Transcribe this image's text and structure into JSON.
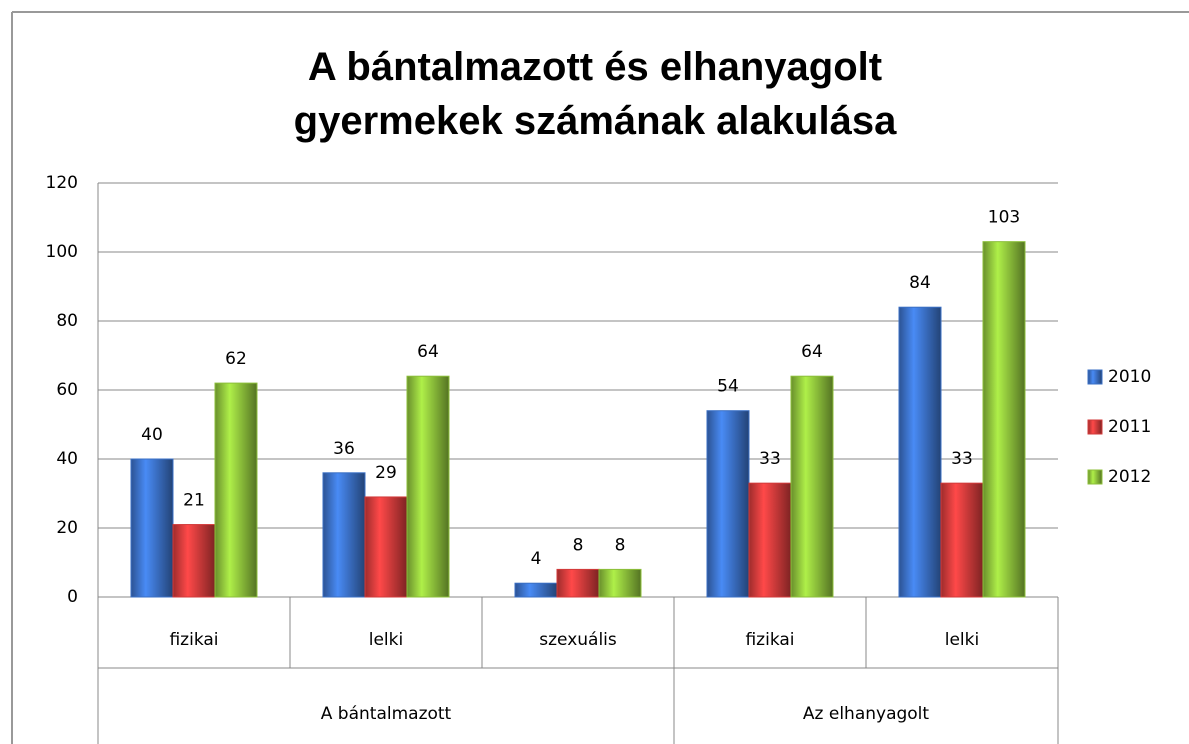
{
  "chart_data": {
    "type": "bar",
    "title": "A bántalmazott és elhanyagolt gyermekek számának alakulása",
    "groups": [
      {
        "name": "A bántalmazott",
        "categories": [
          "fizikai",
          "lelki",
          "szexuális"
        ]
      },
      {
        "name": "Az elhanyagolt",
        "categories": [
          "fizikai",
          "lelki"
        ]
      }
    ],
    "series": [
      {
        "name": "2010",
        "color": "#3a6fc4",
        "values": [
          40,
          36,
          4,
          54,
          84
        ]
      },
      {
        "name": "2011",
        "color": "#d23a3a",
        "values": [
          21,
          29,
          8,
          33,
          33
        ]
      },
      {
        "name": "2012",
        "color": "#8cbf3a",
        "values": [
          62,
          64,
          8,
          64,
          103
        ]
      }
    ],
    "ylim": [
      0,
      120
    ],
    "yticks": [
      0,
      20,
      40,
      60,
      80,
      100,
      120
    ],
    "grid": true,
    "legend": "right"
  }
}
